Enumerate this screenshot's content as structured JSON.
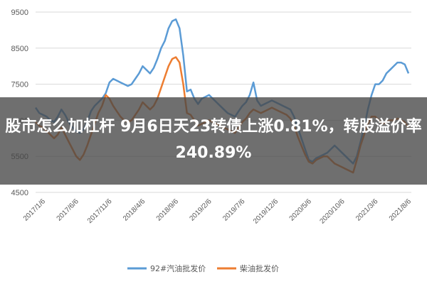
{
  "headline": "股市怎么加杠杆 9月6日天23转债上涨0.81%，转股溢价率240.89%",
  "colors": {
    "series1": "#5b9bd5",
    "series2": "#ed7d31",
    "grid": "#d9d9d9",
    "overlay": "#464646"
  },
  "chart_data": {
    "type": "line",
    "ylim": [
      4500,
      9500
    ],
    "yticks": [
      "4500",
      "5500",
      "6500",
      "7500",
      "8500",
      "9500"
    ],
    "x_tick_labels": [
      "2017/1/6",
      "2017/6/6",
      "2017/11/6",
      "2018/4/6",
      "2018/9/6",
      "2019/2/6",
      "2019/7/6",
      "2019/12/6",
      "2020/5/6",
      "2020/10/6",
      "2021/3/6",
      "2021/8/6"
    ],
    "grid": "horizontal",
    "legend_position": "bottom",
    "series": [
      {
        "name": "92#汽油批发价",
        "color": "#5b9bd5",
        "values": [
          6850,
          6700,
          6650,
          6600,
          6500,
          6450,
          6600,
          6800,
          6650,
          6450,
          6300,
          6200,
          6150,
          6250,
          6450,
          6750,
          6900,
          7000,
          7100,
          7250,
          7550,
          7650,
          7600,
          7550,
          7500,
          7450,
          7500,
          7650,
          7800,
          8000,
          7900,
          7800,
          7950,
          8200,
          8500,
          8700,
          9050,
          9250,
          9300,
          9050,
          8300,
          7300,
          7350,
          7100,
          6950,
          7100,
          7150,
          7200,
          7100,
          7000,
          6900,
          6800,
          6700,
          6650,
          6600,
          6750,
          6900,
          7000,
          7200,
          7550,
          7050,
          6900,
          6950,
          7000,
          7050,
          7000,
          6950,
          6900,
          6850,
          6800,
          6600,
          6300,
          6000,
          5700,
          5400,
          5350,
          5450,
          5500,
          5550,
          5600,
          5700,
          5800,
          5700,
          5600,
          5500,
          5400,
          5300,
          5500,
          5900,
          6300,
          6800,
          7200,
          7500,
          7500,
          7600,
          7800,
          7900,
          8000,
          8100,
          8100,
          8050,
          7800
        ]
      },
      {
        "name": "柴油批发价",
        "color": "#ed7d31",
        "values": [
          6450,
          6350,
          6300,
          6200,
          6100,
          6000,
          6100,
          6300,
          6100,
          5900,
          5700,
          5500,
          5400,
          5550,
          5800,
          6100,
          6400,
          6700,
          6900,
          7200,
          7100,
          6900,
          6750,
          6600,
          6500,
          6450,
          6500,
          6650,
          6800,
          7000,
          6900,
          6800,
          6900,
          7100,
          7400,
          7700,
          8000,
          8200,
          8250,
          8100,
          7500,
          6700,
          6650,
          6500,
          6350,
          6400,
          6450,
          6500,
          6450,
          6400,
          6350,
          6300,
          6250,
          6200,
          6150,
          6300,
          6450,
          6550,
          6700,
          6800,
          6750,
          6700,
          6750,
          6800,
          6850,
          6800,
          6750,
          6700,
          6650,
          6550,
          6350,
          6050,
          5800,
          5550,
          5350,
          5300,
          5400,
          5450,
          5500,
          5500,
          5400,
          5300,
          5250,
          5200,
          5150,
          5100,
          5050,
          5400,
          5800,
          6100,
          6400,
          6600,
          6600,
          6500,
          6400,
          6450,
          6500,
          6500,
          6550,
          6500,
          6450,
          6300
        ]
      }
    ]
  }
}
